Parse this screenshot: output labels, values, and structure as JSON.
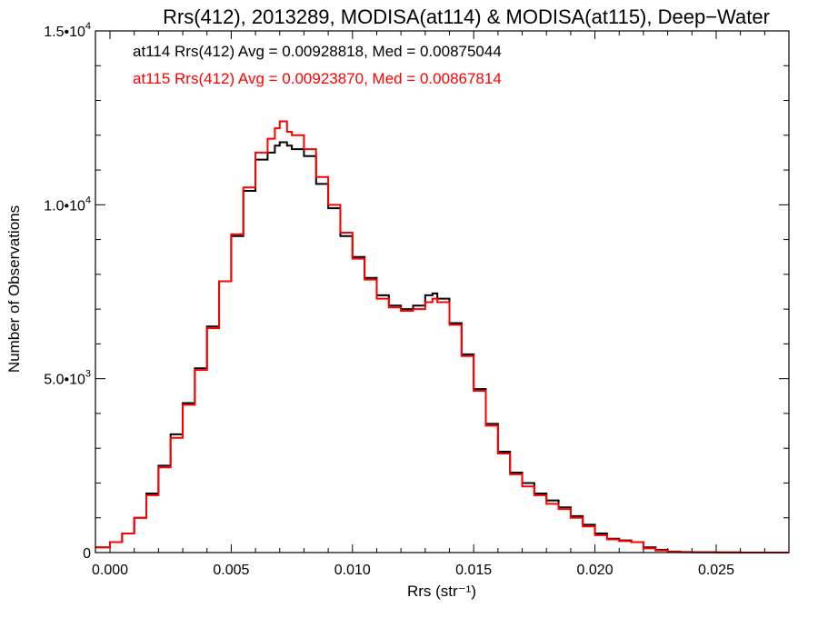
{
  "chart_data": {
    "type": "line",
    "title": "Rrs(412), 2013289, MODISA(at114) & MODISA(at115), Deep−Water",
    "xlabel": "Rrs (str⁻¹)",
    "ylabel": "Number of Observations",
    "xlim": [
      -0.0006,
      0.028
    ],
    "ylim": [
      0,
      15000
    ],
    "x_ticks": [
      0.0,
      0.005,
      0.01,
      0.015,
      0.02,
      0.025
    ],
    "x_tick_labels": [
      "0.000",
      "0.005",
      "0.010",
      "0.015",
      "0.020",
      "0.025"
    ],
    "y_ticks": [
      0,
      5000,
      10000,
      15000
    ],
    "y_tick_labels": [
      {
        "mantissa": "0",
        "exponent": ""
      },
      {
        "mantissa": "5.0•10",
        "exponent": "3"
      },
      {
        "mantissa": "1.0•10",
        "exponent": "4"
      },
      {
        "mantissa": "1.5•10",
        "exponent": "4"
      }
    ],
    "grid": false,
    "legend_placement": "top-left",
    "annotations": [
      {
        "text": "at114 Rrs(412) Avg = 0.00928818, Med = 0.00875044",
        "color": "#000000"
      },
      {
        "text": "at115 Rrs(412) Avg = 0.00923870, Med = 0.00867814",
        "color": "#ff0000"
      }
    ],
    "line_style": "step",
    "series": [
      {
        "name": "at114",
        "color": "#000000",
        "x": [
          -0.0006,
          0.0,
          0.0005,
          0.001,
          0.0015,
          0.002,
          0.0025,
          0.003,
          0.0035,
          0.004,
          0.0045,
          0.005,
          0.0055,
          0.006,
          0.0065,
          0.0068,
          0.007,
          0.0073,
          0.0075,
          0.008,
          0.0085,
          0.009,
          0.0095,
          0.01,
          0.0105,
          0.011,
          0.0115,
          0.012,
          0.0125,
          0.013,
          0.0133,
          0.0135,
          0.014,
          0.0145,
          0.015,
          0.0155,
          0.016,
          0.0165,
          0.017,
          0.0175,
          0.018,
          0.0185,
          0.019,
          0.0195,
          0.02,
          0.0205,
          0.021,
          0.0215,
          0.022,
          0.0225,
          0.023,
          0.0235,
          0.024,
          0.025,
          0.026,
          0.027,
          0.028
        ],
        "y": [
          150,
          300,
          550,
          1000,
          1700,
          2500,
          3400,
          4300,
          5300,
          6500,
          7800,
          9100,
          10400,
          11300,
          11500,
          11700,
          11800,
          11700,
          11600,
          11400,
          10600,
          9900,
          9100,
          8500,
          7900,
          7400,
          7100,
          7000,
          7100,
          7400,
          7450,
          7300,
          6600,
          5700,
          4700,
          3700,
          2900,
          2300,
          2000,
          1700,
          1500,
          1300,
          1050,
          800,
          550,
          400,
          350,
          300,
          150,
          80,
          30,
          15,
          10,
          5,
          0,
          0,
          0
        ]
      },
      {
        "name": "at115",
        "color": "#ff0000",
        "x": [
          -0.0006,
          0.0,
          0.0005,
          0.001,
          0.0015,
          0.002,
          0.0025,
          0.003,
          0.0035,
          0.004,
          0.0045,
          0.005,
          0.0055,
          0.006,
          0.0065,
          0.0068,
          0.007,
          0.0073,
          0.0075,
          0.008,
          0.0085,
          0.009,
          0.0095,
          0.01,
          0.0105,
          0.011,
          0.0115,
          0.012,
          0.0125,
          0.013,
          0.0133,
          0.0135,
          0.014,
          0.0145,
          0.015,
          0.0155,
          0.016,
          0.0165,
          0.017,
          0.0175,
          0.018,
          0.0185,
          0.019,
          0.0195,
          0.02,
          0.0205,
          0.021,
          0.0215,
          0.022,
          0.0225,
          0.023,
          0.0235,
          0.024,
          0.025,
          0.026,
          0.027,
          0.028
        ],
        "y": [
          150,
          300,
          550,
          1000,
          1650,
          2450,
          3300,
          4250,
          5250,
          6450,
          7800,
          9150,
          10500,
          11500,
          11900,
          12200,
          12400,
          12100,
          12000,
          11600,
          10800,
          10000,
          9200,
          8450,
          7850,
          7300,
          7050,
          6950,
          7000,
          7200,
          7300,
          7200,
          6550,
          5650,
          4650,
          3650,
          2850,
          2250,
          1900,
          1650,
          1400,
          1250,
          1000,
          750,
          500,
          380,
          330,
          300,
          120,
          60,
          20,
          10,
          5,
          0,
          0,
          0,
          0
        ]
      }
    ]
  }
}
